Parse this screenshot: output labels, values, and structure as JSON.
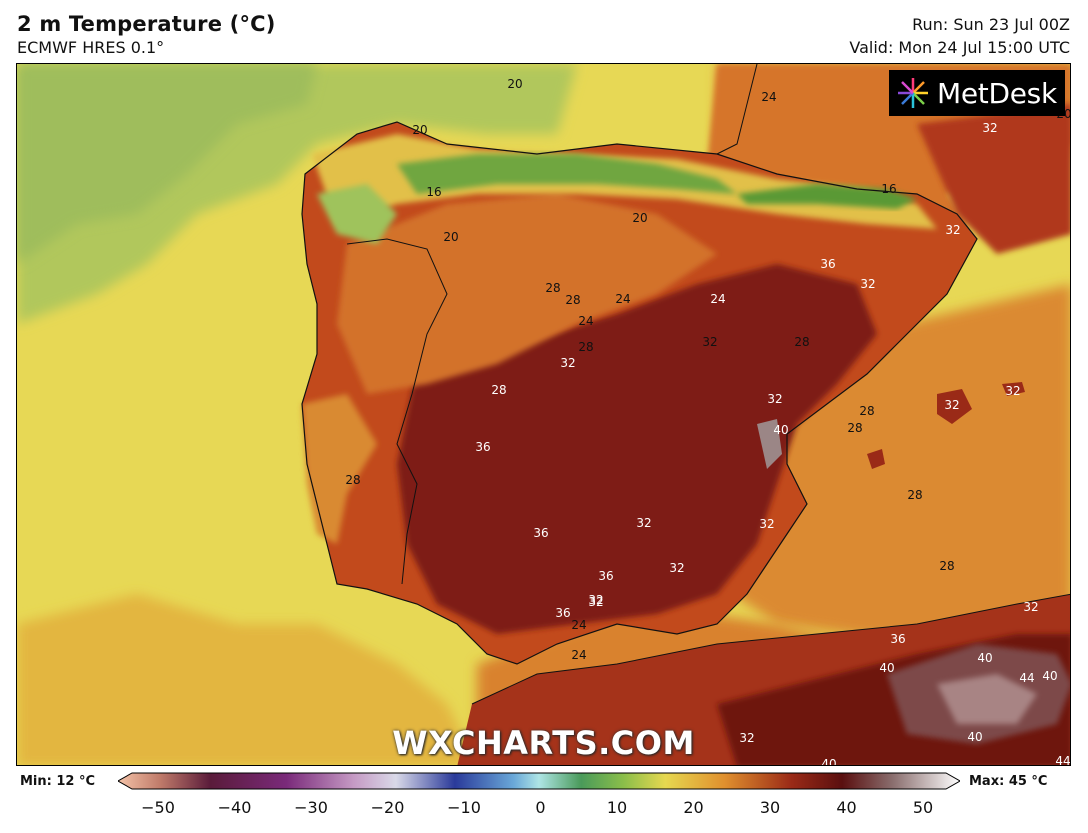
{
  "header": {
    "title": "2 m Temperature (°C)",
    "subtitle": "ECMWF HRES 0.1°",
    "run": "Run: Sun 23 Jul 00Z",
    "valid": "Valid: Mon 24 Jul 15:00 UTC"
  },
  "logo": {
    "text": "MetDesk",
    "icon": "metdesk-starburst-icon"
  },
  "watermark": "WXCHARTS.COM",
  "map": {
    "region": "Iberian Peninsula",
    "contour_labels": [
      "20",
      "24",
      "20",
      "16",
      "20",
      "20",
      "16",
      "32",
      "32",
      "36",
      "32",
      "28",
      "28",
      "24",
      "24",
      "28",
      "24",
      "32",
      "32",
      "28",
      "28",
      "32",
      "36",
      "40",
      "28",
      "28",
      "32",
      "32",
      "32",
      "28",
      "32",
      "36",
      "32",
      "36",
      "28",
      "32",
      "36",
      "32",
      "24",
      "24",
      "28",
      "36",
      "40",
      "40",
      "44",
      "40",
      "40",
      "32",
      "32",
      "40",
      "44",
      "20"
    ]
  },
  "scale": {
    "min_label": "Min: 12 °C",
    "max_label": "Max: 45 °C",
    "ticks": [
      "−50",
      "−40",
      "−30",
      "−20",
      "−10",
      "0",
      "10",
      "20",
      "30",
      "40",
      "50"
    ]
  },
  "colors": {
    "sea_cool": "#e6d752",
    "sea_green": "#a9c25a",
    "land_hot": "#7a1a10",
    "land_warm": "#c0461a",
    "land_mild": "#e0902e",
    "mountains": "#5e9a3a"
  }
}
